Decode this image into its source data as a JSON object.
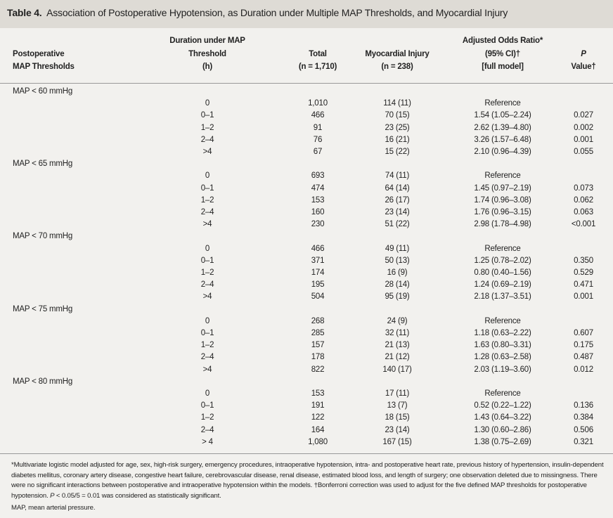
{
  "title": {
    "label": "Table 4.",
    "text": "Association of Postoperative Hypotension, as Duration under Multiple MAP Thresholds, and Myocardial Injury"
  },
  "header": [
    {
      "lines": [
        "Postoperative",
        "MAP Thresholds"
      ]
    },
    {
      "lines": [
        "Duration under MAP",
        "Threshold",
        "(h)"
      ]
    },
    {
      "lines": [
        "Total",
        "(n = 1,710)"
      ]
    },
    {
      "lines": [
        "Myocardial Injury",
        "(n = 238)"
      ]
    },
    {
      "lines": [
        "Adjusted Odds Ratio*",
        "(95% CI)†",
        "[full model]"
      ]
    },
    {
      "lines": [
        "P",
        "Value†"
      ]
    }
  ],
  "groups": [
    {
      "label": "MAP < 60 mmHg",
      "rows": [
        [
          "0",
          "1,010",
          "114 (11)",
          "Reference"
        ],
        [
          "0–1",
          "466",
          "70 (15)",
          "1.54 (1.05–2.24)",
          "0.027"
        ],
        [
          "1–2",
          "91",
          "23 (25)",
          "2.62 (1.39–4.80)",
          "0.002"
        ],
        [
          "2–4",
          "76",
          "16 (21)",
          "3.26 (1.57–6.48)",
          "0.001"
        ],
        [
          ">4",
          "67",
          "15 (22)",
          "2.10 (0.96–4.39)",
          "0.055"
        ]
      ]
    },
    {
      "label": "MAP < 65 mmHg",
      "rows": [
        [
          "0",
          "693",
          "74 (11)",
          "Reference"
        ],
        [
          "0–1",
          "474",
          "64 (14)",
          "1.45 (0.97–2.19)",
          "0.073"
        ],
        [
          "1–2",
          "153",
          "26 (17)",
          "1.74 (0.96–3.08)",
          "0.062"
        ],
        [
          "2–4",
          "160",
          "23 (14)",
          "1.76 (0.96–3.15)",
          "0.063"
        ],
        [
          ">4",
          "230",
          "51 (22)",
          "2.98 (1.78–4.98)",
          "<0.001"
        ]
      ]
    },
    {
      "label": "MAP < 70 mmHg",
      "rows": [
        [
          "0",
          "466",
          "49 (11)",
          "Reference"
        ],
        [
          "0–1",
          "371",
          "50 (13)",
          "1.25 (0.78–2.02)",
          "0.350"
        ],
        [
          "1–2",
          "174",
          "16 (9)",
          "0.80 (0.40–1.56)",
          "0.529"
        ],
        [
          "2–4",
          "195",
          "28 (14)",
          "1.24 (0.69–2.19)",
          "0.471"
        ],
        [
          ">4",
          "504",
          "95 (19)",
          "2.18 (1.37–3.51)",
          "0.001"
        ]
      ]
    },
    {
      "label": "MAP < 75 mmHg",
      "rows": [
        [
          "0",
          "268",
          "24 (9)",
          "Reference"
        ],
        [
          "0–1",
          "285",
          "32 (11)",
          "1.18 (0.63–2.22)",
          "0.607"
        ],
        [
          "1–2",
          "157",
          "21 (13)",
          "1.63 (0.80–3.31)",
          "0.175"
        ],
        [
          "2–4",
          "178",
          "21 (12)",
          "1.28 (0.63–2.58)",
          "0.487"
        ],
        [
          ">4",
          "822",
          "140 (17)",
          "2.03 (1.19–3.60)",
          "0.012"
        ]
      ]
    },
    {
      "label": "MAP < 80 mmHg",
      "rows": [
        [
          "0",
          "153",
          "17 (11)",
          "Reference"
        ],
        [
          "0–1",
          "191",
          "13 (7)",
          "0.52 (0.22–1.22)",
          "0.136"
        ],
        [
          "1–2",
          "122",
          "18 (15)",
          "1.43 (0.64–3.22)",
          "0.384"
        ],
        [
          "2–4",
          "164",
          "23 (14)",
          "1.30 (0.60–2.86)",
          "0.506"
        ],
        [
          "> 4",
          "1,080",
          "167 (15)",
          "1.38 (0.75–2.69)",
          "0.321"
        ]
      ]
    }
  ],
  "footnotes": [
    {
      "parts": [
        "*Multivariate logistic model adjusted for age, sex, high-risk surgery, emergency procedures, intraoperative hypotension, intra- and postoperative heart rate, previous history of hypertension, insulin-dependent diabetes mellitus, coronary artery disease, congestive heart failure, cerebrovascular disease, renal disease, estimated blood loss, and length of surgery; one observation deleted due to missingness. There were no significant interactions between postoperative and intraoperative hypotension within the models. †Bonferroni correction was used to adjust for the five defined MAP thresholds for postoperative hypotension. ",
        "P",
        " < 0.05/5 = 0.01 was considered as statistically significant."
      ]
    },
    {
      "parts": [
        "MAP, mean arterial pressure."
      ]
    }
  ]
}
